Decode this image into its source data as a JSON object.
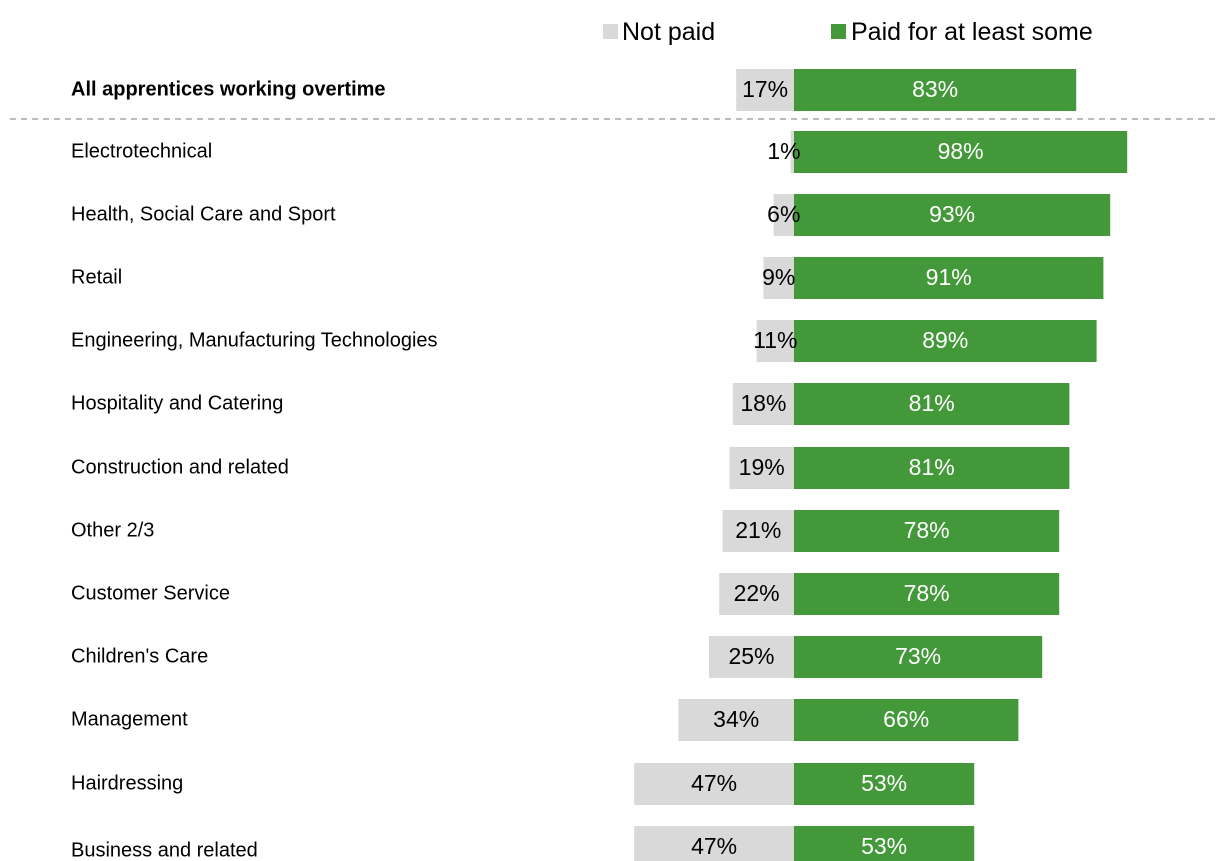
{
  "chart_data": {
    "type": "bar",
    "orientation": "horizontal",
    "stacking": "diverging",
    "categories": [
      "All apprentices working overtime",
      "Electrotechnical",
      "Health, Social Care and Sport",
      "Retail",
      "Engineering, Manufacturing Technologies",
      "Hospitality and Catering",
      "Construction and related",
      "Other 2/3",
      "Customer Service",
      "Children's Care",
      "Management",
      "Hairdressing",
      "Business and related"
    ],
    "series": [
      {
        "name": "Not paid",
        "color": "#d9d9d9",
        "values": [
          17,
          1,
          6,
          9,
          11,
          18,
          19,
          21,
          22,
          25,
          34,
          47,
          47
        ],
        "labels": [
          "17%",
          "1%",
          "6%",
          "9%",
          "11%",
          "18%",
          "19%",
          "21%",
          "22%",
          "25%",
          "34%",
          "47%",
          "47%"
        ]
      },
      {
        "name": "Paid for at least some",
        "color": "#43993a",
        "values": [
          83,
          98,
          93,
          91,
          89,
          81,
          81,
          78,
          78,
          73,
          66,
          53,
          53
        ],
        "labels": [
          "83%",
          "98%",
          "93%",
          "91%",
          "89%",
          "81%",
          "81%",
          "78%",
          "78%",
          "73%",
          "66%",
          "53%",
          "53%"
        ]
      }
    ],
    "title": "",
    "xlabel": "",
    "ylabel": "",
    "xlim": [
      -50,
      100
    ],
    "grid": false,
    "legend_position": "top"
  }
}
